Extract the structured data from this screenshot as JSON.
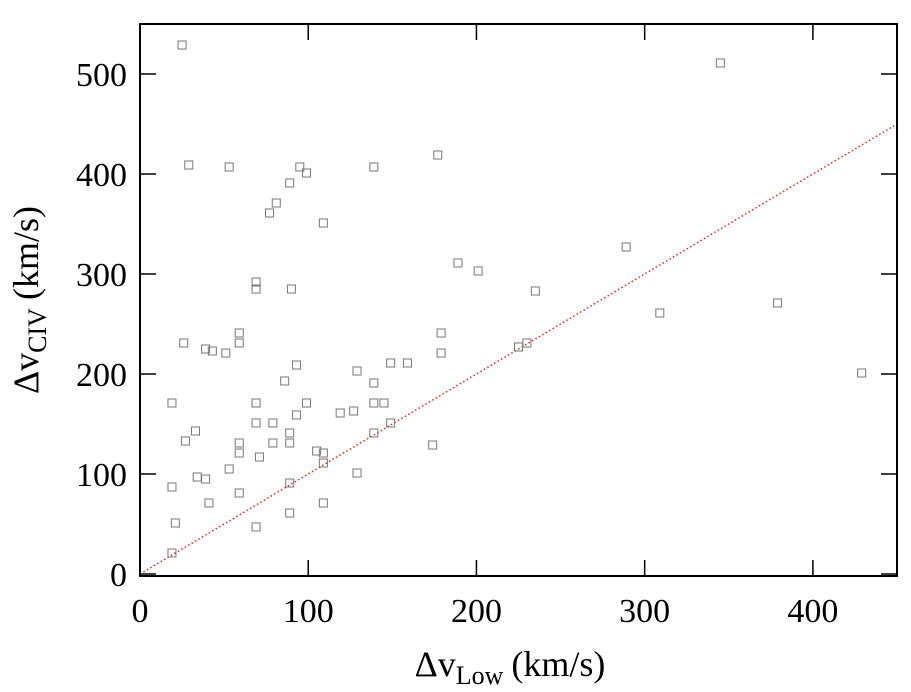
{
  "chart_data": {
    "type": "scatter",
    "x": [
      25,
      345,
      29,
      53,
      95,
      139,
      177,
      99,
      89,
      81,
      77,
      109,
      289,
      189,
      201,
      235,
      69,
      90,
      69,
      379,
      309,
      59,
      179,
      26,
      59,
      230,
      225,
      39,
      43,
      51,
      179,
      93,
      149,
      159,
      129,
      429,
      86,
      139,
      19,
      69,
      99,
      139,
      145,
      119,
      127,
      93,
      69,
      79,
      149,
      33,
      89,
      139,
      27,
      59,
      79,
      89,
      174,
      105,
      59,
      109,
      71,
      109,
      53,
      129,
      34,
      39,
      89,
      19,
      59,
      41,
      109,
      89,
      21,
      69,
      19
    ],
    "values": [
      529,
      511,
      409,
      407,
      407,
      407,
      419,
      401,
      391,
      371,
      361,
      351,
      327,
      311,
      303,
      283,
      285,
      285,
      292,
      271,
      261,
      241,
      241,
      231,
      231,
      231,
      227,
      225,
      223,
      221,
      221,
      209,
      211,
      211,
      203,
      201,
      193,
      191,
      171,
      171,
      171,
      171,
      171,
      161,
      163,
      159,
      151,
      151,
      151,
      143,
      141,
      141,
      133,
      131,
      131,
      131,
      129,
      123,
      121,
      121,
      117,
      111,
      105,
      101,
      97,
      95,
      91,
      87,
      81,
      71,
      71,
      61,
      51,
      47,
      21
    ],
    "color": "#777777",
    "reference_line": {
      "x": [
        0,
        450
      ],
      "y": [
        0,
        450
      ],
      "color": "#e8211c",
      "style": "dotted"
    },
    "xlim": [
      0,
      450
    ],
    "ylim": [
      -2,
      550
    ],
    "xticks": [
      0,
      100,
      200,
      300,
      400
    ],
    "yticks": [
      0,
      100,
      200,
      300,
      400,
      500
    ],
    "xlabel": {
      "main": "Δv",
      "sub": "Low",
      "unit": "(km/s)"
    },
    "ylabel": {
      "main": "Δv",
      "sub": "CIV",
      "unit": "(km/s)"
    }
  }
}
